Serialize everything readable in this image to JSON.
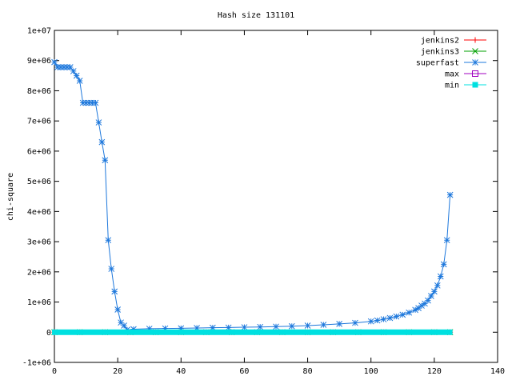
{
  "chart_data": {
    "type": "line",
    "title": "Hash size 131101",
    "xlabel": "",
    "ylabel": "chi-square",
    "xlim": [
      0,
      140
    ],
    "ylim": [
      -1000000,
      10000000
    ],
    "x_ticks": [
      0,
      20,
      40,
      60,
      80,
      100,
      120,
      140
    ],
    "x_tick_labels": [
      "0",
      "20",
      "40",
      "60",
      "80",
      "100",
      "120",
      "140"
    ],
    "y_ticks": [
      -1000000,
      0,
      1000000,
      2000000,
      3000000,
      4000000,
      5000000,
      6000000,
      7000000,
      8000000,
      9000000,
      10000000
    ],
    "y_tick_labels": [
      "-1e+06",
      "0",
      "1e+06",
      "2e+06",
      "3e+06",
      "4e+06",
      "5e+06",
      "6e+06",
      "7e+06",
      "8e+06",
      "9e+06",
      "1e+07"
    ],
    "grid": false,
    "legend_position": "top-right",
    "series": [
      {
        "name": "jenkins2",
        "color": "#ff0000",
        "marker": "plus",
        "x": [
          0,
          8,
          16,
          24,
          32,
          40,
          48,
          56,
          64,
          72,
          80,
          88,
          96,
          104,
          112,
          120,
          125
        ],
        "y": [
          0,
          0,
          0,
          0,
          0,
          0,
          0,
          0,
          0,
          0,
          0,
          0,
          0,
          0,
          0,
          0,
          0
        ]
      },
      {
        "name": "jenkins3",
        "color": "#00a000",
        "marker": "cross",
        "x": [
          0,
          8,
          16,
          24,
          32,
          40,
          48,
          56,
          64,
          72,
          80,
          88,
          96,
          104,
          112,
          120,
          125
        ],
        "y": [
          0,
          0,
          0,
          0,
          0,
          0,
          0,
          0,
          0,
          0,
          0,
          0,
          0,
          0,
          0,
          0,
          0
        ]
      },
      {
        "name": "superfast",
        "color": "#1e78dc",
        "marker": "star",
        "x": [
          0,
          1,
          2,
          3,
          4,
          5,
          6,
          7,
          8,
          9,
          10,
          11,
          12,
          13,
          14,
          15,
          16,
          17,
          18,
          19,
          20,
          21,
          22,
          23,
          25,
          30,
          35,
          40,
          45,
          50,
          55,
          60,
          65,
          70,
          75,
          80,
          85,
          90,
          95,
          100,
          102,
          104,
          106,
          108,
          110,
          112,
          114,
          115,
          116,
          117,
          118,
          119,
          120,
          121,
          122,
          123,
          124,
          125
        ],
        "y": [
          8950000,
          8780000,
          8780000,
          8780000,
          8780000,
          8780000,
          8650000,
          8500000,
          8330000,
          7600000,
          7600000,
          7600000,
          7600000,
          7600000,
          6950000,
          6300000,
          5700000,
          3050000,
          2100000,
          1350000,
          750000,
          320000,
          220000,
          80000,
          100000,
          115000,
          125000,
          130000,
          140000,
          150000,
          155000,
          165000,
          175000,
          185000,
          200000,
          220000,
          245000,
          275000,
          310000,
          360000,
          390000,
          430000,
          470000,
          520000,
          580000,
          650000,
          740000,
          800000,
          880000,
          950000,
          1050000,
          1200000,
          1350000,
          1550000,
          1850000,
          2250000,
          3050000,
          4550000
        ]
      },
      {
        "name": "max",
        "color": "#a000c0",
        "marker": "square-open",
        "x": [],
        "y": []
      },
      {
        "name": "min",
        "color": "#00e0e0",
        "marker": "square-filled",
        "x": [
          0,
          5,
          10,
          15,
          20,
          25,
          30,
          35,
          40,
          45,
          50,
          55,
          60,
          65,
          70,
          75,
          80,
          85,
          90,
          95,
          100,
          105,
          110,
          115,
          120,
          125
        ],
        "y": [
          0,
          0,
          0,
          0,
          0,
          0,
          0,
          0,
          0,
          0,
          0,
          0,
          0,
          0,
          0,
          0,
          0,
          0,
          0,
          0,
          0,
          0,
          0,
          0,
          0,
          0
        ]
      }
    ]
  }
}
